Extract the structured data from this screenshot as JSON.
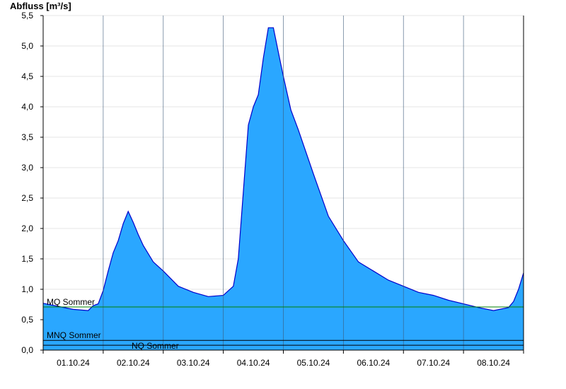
{
  "chart_data": {
    "type": "area",
    "ylabel": "Abfluss [m³/s]",
    "xlabel": "",
    "title": "",
    "ylim": [
      0,
      5.5
    ],
    "yticks": [
      "0,0",
      "0,5",
      "1,0",
      "1,5",
      "2,0",
      "2,5",
      "3,0",
      "3,5",
      "4,0",
      "4,5",
      "5,0",
      "5,5"
    ],
    "ytick_values": [
      0,
      0.5,
      1,
      1.5,
      2,
      2.5,
      3,
      3.5,
      4,
      4.5,
      5,
      5.5
    ],
    "xlim_days": [
      0,
      8
    ],
    "xtick_labels": [
      "01.10.24",
      "02.10.24",
      "03.10.24",
      "04.10.24",
      "05.10.24",
      "06.10.24",
      "07.10.24",
      "08.10.24"
    ],
    "grid": true,
    "colors": {
      "fill": "#2aa7ff",
      "line": "#0000cc",
      "mq": "#008000",
      "mnq": "#000000",
      "nq": "#000000"
    },
    "reference_lines": [
      {
        "name": "MQ Sommer",
        "value": 0.71
      },
      {
        "name": "MNQ Sommer",
        "value": 0.16
      },
      {
        "name": "NQ Sommer",
        "value": 0.08
      }
    ],
    "series": [
      {
        "x": [
          "01.10.24 00:00",
          "01.10.24 06:00",
          "01.10.24 12:00",
          "01.10.24 18:00",
          "01.10.24 20:00",
          "01.10.24 22:00",
          "02.10.24 00:00",
          "02.10.24 02:00",
          "02.10.24 04:00",
          "02.10.24 06:00",
          "02.10.24 08:00",
          "02.10.24 10:00",
          "02.10.24 12:00",
          "02.10.24 14:00",
          "02.10.24 16:00",
          "02.10.24 20:00",
          "03.10.24 00:00",
          "03.10.24 06:00",
          "03.10.24 12:00",
          "03.10.24 18:00",
          "04.10.24 00:00",
          "04.10.24 04:00",
          "04.10.24 06:00",
          "04.10.24 08:00",
          "04.10.24 10:00",
          "04.10.24 12:00",
          "04.10.24 14:00",
          "04.10.24 16:00",
          "04.10.24 18:00",
          "04.10.24 20:00",
          "04.10.24 22:00",
          "05.10.24 00:00",
          "05.10.24 03:00",
          "05.10.24 06:00",
          "05.10.24 12:00",
          "05.10.24 18:00",
          "06.10.24 00:00",
          "06.10.24 06:00",
          "06.10.24 12:00",
          "06.10.24 18:00",
          "07.10.24 00:00",
          "07.10.24 06:00",
          "07.10.24 12:00",
          "07.10.24 18:00",
          "08.10.24 00:00",
          "08.10.24 06:00",
          "08.10.24 12:00",
          "08.10.24 18:00",
          "08.10.24 20:00",
          "08.10.24 22:00",
          "08.10.24 24:00"
        ],
        "values": [
          0.77,
          0.72,
          0.67,
          0.65,
          0.73,
          0.76,
          0.98,
          1.3,
          1.6,
          1.8,
          2.08,
          2.28,
          2.1,
          1.9,
          1.72,
          1.45,
          1.3,
          1.05,
          0.95,
          0.88,
          0.9,
          1.05,
          1.5,
          2.6,
          3.7,
          4.0,
          4.2,
          4.8,
          5.3,
          5.3,
          4.9,
          4.5,
          3.95,
          3.62,
          2.9,
          2.2,
          1.8,
          1.45,
          1.3,
          1.15,
          1.05,
          0.95,
          0.9,
          0.82,
          0.76,
          0.7,
          0.65,
          0.7,
          0.8,
          1.0,
          1.27
        ]
      }
    ]
  }
}
